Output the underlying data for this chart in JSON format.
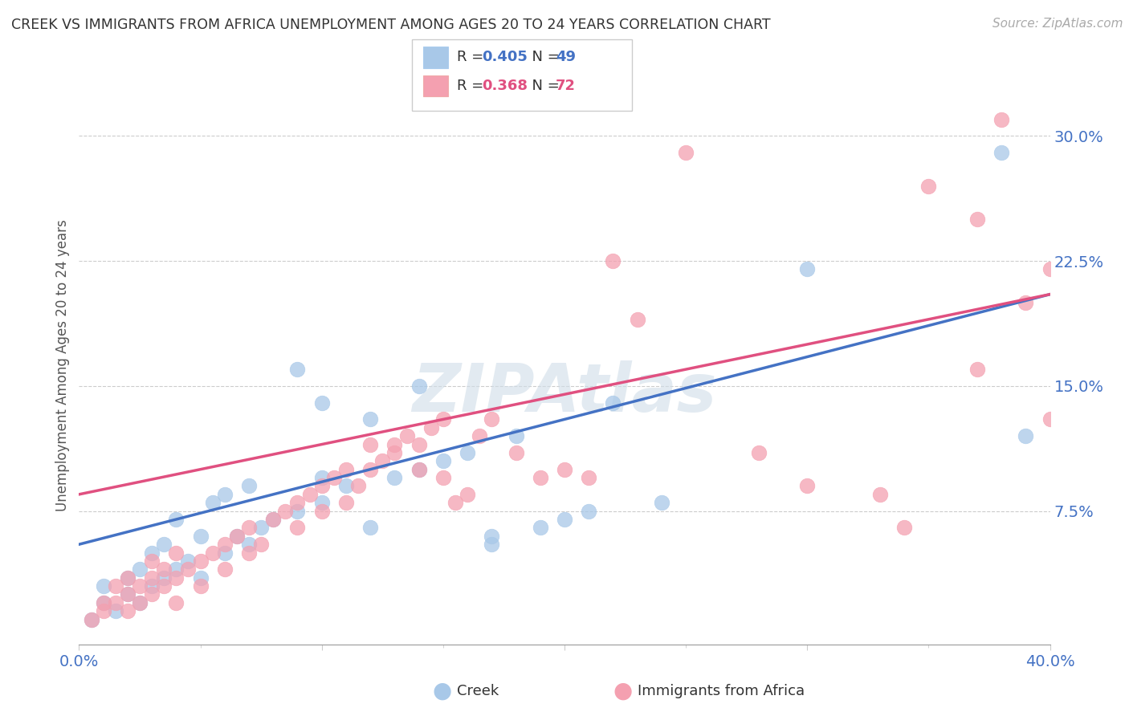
{
  "title": "CREEK VS IMMIGRANTS FROM AFRICA UNEMPLOYMENT AMONG AGES 20 TO 24 YEARS CORRELATION CHART",
  "source": "Source: ZipAtlas.com",
  "ylabel": "Unemployment Among Ages 20 to 24 years",
  "yticks": [
    0.0,
    0.075,
    0.15,
    0.225,
    0.3
  ],
  "ytick_labels": [
    "",
    "7.5%",
    "15.0%",
    "22.5%",
    "30.0%"
  ],
  "xlim": [
    0.0,
    0.4
  ],
  "ylim": [
    -0.005,
    0.33
  ],
  "creek_R": 0.405,
  "creek_N": 49,
  "africa_R": 0.368,
  "africa_N": 72,
  "creek_color": "#a8c8e8",
  "africa_color": "#f4a0b0",
  "creek_line_color": "#4472c4",
  "africa_line_color": "#e05080",
  "legend_creek_label": "Creek",
  "legend_africa_label": "Immigrants from Africa",
  "watermark": "ZIPAtlas",
  "creek_scatter": [
    [
      0.005,
      0.01
    ],
    [
      0.01,
      0.02
    ],
    [
      0.01,
      0.03
    ],
    [
      0.015,
      0.015
    ],
    [
      0.02,
      0.025
    ],
    [
      0.02,
      0.035
    ],
    [
      0.025,
      0.02
    ],
    [
      0.025,
      0.04
    ],
    [
      0.03,
      0.03
    ],
    [
      0.03,
      0.05
    ],
    [
      0.035,
      0.035
    ],
    [
      0.035,
      0.055
    ],
    [
      0.04,
      0.04
    ],
    [
      0.04,
      0.07
    ],
    [
      0.045,
      0.045
    ],
    [
      0.05,
      0.035
    ],
    [
      0.05,
      0.06
    ],
    [
      0.055,
      0.08
    ],
    [
      0.06,
      0.05
    ],
    [
      0.06,
      0.085
    ],
    [
      0.065,
      0.06
    ],
    [
      0.07,
      0.055
    ],
    [
      0.07,
      0.09
    ],
    [
      0.075,
      0.065
    ],
    [
      0.08,
      0.07
    ],
    [
      0.09,
      0.075
    ],
    [
      0.09,
      0.16
    ],
    [
      0.1,
      0.08
    ],
    [
      0.1,
      0.095
    ],
    [
      0.1,
      0.14
    ],
    [
      0.11,
      0.09
    ],
    [
      0.12,
      0.065
    ],
    [
      0.12,
      0.13
    ],
    [
      0.13,
      0.095
    ],
    [
      0.14,
      0.1
    ],
    [
      0.14,
      0.15
    ],
    [
      0.15,
      0.105
    ],
    [
      0.16,
      0.11
    ],
    [
      0.17,
      0.055
    ],
    [
      0.17,
      0.06
    ],
    [
      0.18,
      0.12
    ],
    [
      0.19,
      0.065
    ],
    [
      0.2,
      0.07
    ],
    [
      0.21,
      0.075
    ],
    [
      0.22,
      0.14
    ],
    [
      0.24,
      0.08
    ],
    [
      0.3,
      0.22
    ],
    [
      0.38,
      0.29
    ],
    [
      0.39,
      0.12
    ]
  ],
  "africa_scatter": [
    [
      0.005,
      0.01
    ],
    [
      0.01,
      0.015
    ],
    [
      0.01,
      0.02
    ],
    [
      0.015,
      0.02
    ],
    [
      0.015,
      0.03
    ],
    [
      0.02,
      0.015
    ],
    [
      0.02,
      0.025
    ],
    [
      0.02,
      0.035
    ],
    [
      0.025,
      0.02
    ],
    [
      0.025,
      0.03
    ],
    [
      0.03,
      0.025
    ],
    [
      0.03,
      0.035
    ],
    [
      0.03,
      0.045
    ],
    [
      0.035,
      0.03
    ],
    [
      0.035,
      0.04
    ],
    [
      0.04,
      0.02
    ],
    [
      0.04,
      0.035
    ],
    [
      0.04,
      0.05
    ],
    [
      0.045,
      0.04
    ],
    [
      0.05,
      0.03
    ],
    [
      0.05,
      0.045
    ],
    [
      0.055,
      0.05
    ],
    [
      0.06,
      0.04
    ],
    [
      0.06,
      0.055
    ],
    [
      0.065,
      0.06
    ],
    [
      0.07,
      0.05
    ],
    [
      0.07,
      0.065
    ],
    [
      0.075,
      0.055
    ],
    [
      0.08,
      0.07
    ],
    [
      0.085,
      0.075
    ],
    [
      0.09,
      0.065
    ],
    [
      0.09,
      0.08
    ],
    [
      0.095,
      0.085
    ],
    [
      0.1,
      0.075
    ],
    [
      0.1,
      0.09
    ],
    [
      0.105,
      0.095
    ],
    [
      0.11,
      0.08
    ],
    [
      0.11,
      0.1
    ],
    [
      0.115,
      0.09
    ],
    [
      0.12,
      0.1
    ],
    [
      0.12,
      0.115
    ],
    [
      0.125,
      0.105
    ],
    [
      0.13,
      0.11
    ],
    [
      0.13,
      0.115
    ],
    [
      0.135,
      0.12
    ],
    [
      0.14,
      0.1
    ],
    [
      0.14,
      0.115
    ],
    [
      0.145,
      0.125
    ],
    [
      0.15,
      0.095
    ],
    [
      0.15,
      0.13
    ],
    [
      0.155,
      0.08
    ],
    [
      0.16,
      0.085
    ],
    [
      0.165,
      0.12
    ],
    [
      0.17,
      0.13
    ],
    [
      0.18,
      0.11
    ],
    [
      0.19,
      0.095
    ],
    [
      0.2,
      0.1
    ],
    [
      0.21,
      0.095
    ],
    [
      0.22,
      0.225
    ],
    [
      0.23,
      0.19
    ],
    [
      0.25,
      0.29
    ],
    [
      0.28,
      0.11
    ],
    [
      0.3,
      0.09
    ],
    [
      0.33,
      0.085
    ],
    [
      0.34,
      0.065
    ],
    [
      0.35,
      0.27
    ],
    [
      0.37,
      0.16
    ],
    [
      0.38,
      0.31
    ],
    [
      0.4,
      0.13
    ],
    [
      0.4,
      0.22
    ],
    [
      0.39,
      0.2
    ],
    [
      0.37,
      0.25
    ]
  ]
}
